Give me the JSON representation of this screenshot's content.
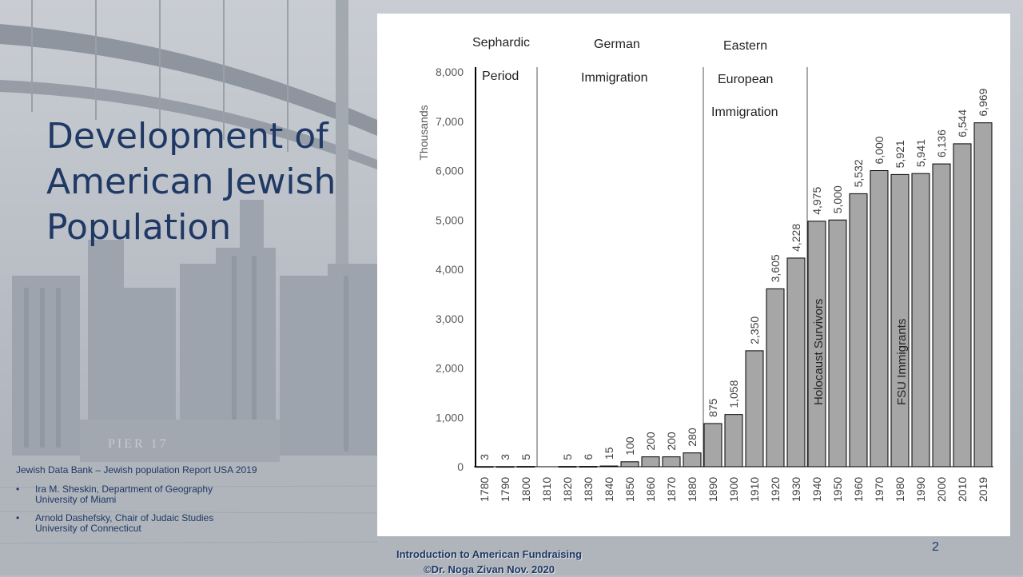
{
  "slide": {
    "title": "Development of American Jewish Population",
    "source_title": "Jewish Data Bank – Jewish population Report USA 2019",
    "authors": [
      {
        "line1": "Ira M. Sheskin, Department of Geography",
        "line2": "University of Miami"
      },
      {
        "line1": "Arnold Dashefsky, Chair of Judaic Studies",
        "line2": "University of Connecticut"
      }
    ],
    "footer_line1": "Introduction to  American Fundraising",
    "footer_line2": "©Dr. Noga Zivan Nov. 2020",
    "page_number": "2",
    "colors": {
      "title": "#1f3864",
      "bar_fill": "#a6a6a6",
      "bar_stroke": "#000000",
      "background_photo": "#b9bec6"
    },
    "background": "grayscale photo of a bridge and city skyline (pier 17)"
  },
  "chart_data": {
    "type": "bar",
    "categories": [
      "1780",
      "1790",
      "1800",
      "1810",
      "1820",
      "1830",
      "1840",
      "1850",
      "1860",
      "1870",
      "1880",
      "1890",
      "1900",
      "1910",
      "1920",
      "1930",
      "1940",
      "1950",
      "1960",
      "1970",
      "1980",
      "1990",
      "2000",
      "2010",
      "2019"
    ],
    "values": [
      3,
      3,
      5,
      0,
      5,
      6,
      15,
      100,
      200,
      200,
      280,
      875,
      1058,
      2350,
      3605,
      4228,
      4975,
      5000,
      5532,
      6000,
      5921,
      5941,
      6136,
      6544,
      6969
    ],
    "value_labels": [
      "3",
      "3",
      "5",
      "",
      "5",
      "6",
      "15",
      "100",
      "200",
      "200",
      "280",
      "875",
      "1,058",
      "2,350",
      "3,605",
      "4,228",
      "4,975",
      "5,000",
      "5,532",
      "6,000",
      "5,921",
      "5,941",
      "6,136",
      "6,544",
      "6,969"
    ],
    "ylabel": "Thousands",
    "ylim": [
      0,
      8000
    ],
    "yticks": [
      0,
      1000,
      2000,
      3000,
      4000,
      5000,
      6000,
      7000,
      8000
    ],
    "ytick_labels": [
      "0",
      "1,000",
      "2,000",
      "3,000",
      "4,000",
      "5,000",
      "6,000",
      "7,000",
      "8,000"
    ],
    "grid": false,
    "legend": "none",
    "periods": [
      {
        "lines": [
          "Sephardic",
          "Period"
        ],
        "start_category": "1780"
      },
      {
        "lines": [
          "German",
          "Immigration"
        ],
        "start_category": "1810"
      },
      {
        "lines": [
          "Eastern",
          "European",
          "Immigration"
        ],
        "start_category": "1890"
      }
    ],
    "annotations": [
      {
        "text": "Holocaust Survivors",
        "category": "1940"
      },
      {
        "text": "FSU Immigrants",
        "category": "1980"
      }
    ]
  }
}
